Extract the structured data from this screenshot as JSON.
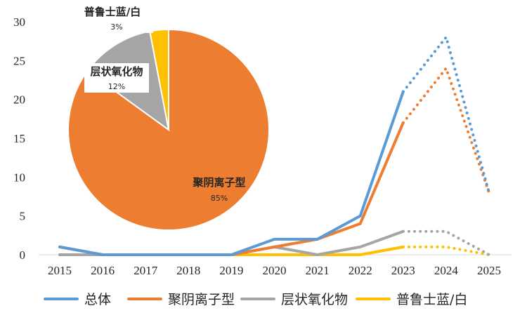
{
  "chart_data": [
    {
      "type": "line",
      "categories": [
        "2015",
        "2016",
        "2017",
        "2018",
        "2019",
        "2020",
        "2021",
        "2022",
        "2023",
        "2024",
        "2025"
      ],
      "ylim": [
        0,
        30
      ],
      "yticks": [
        0,
        5,
        10,
        15,
        20,
        25,
        30
      ],
      "solid_through": "2023",
      "forecast_from": "2023",
      "series": [
        {
          "name": "总体",
          "color": "#5B9BD5",
          "values": [
            1,
            0,
            0,
            0,
            0,
            2,
            2,
            5,
            21,
            28,
            8
          ]
        },
        {
          "name": "聚阴离子型",
          "color": "#ED7D31",
          "values": [
            1,
            0,
            0,
            0,
            0,
            1,
            2,
            4,
            17,
            24,
            8
          ]
        },
        {
          "name": "层状氧化物",
          "color": "#A5A5A5",
          "values": [
            0,
            0,
            0,
            0,
            0,
            1,
            0,
            1,
            3,
            3,
            0
          ]
        },
        {
          "name": "普鲁士蓝/白",
          "color": "#FFC000",
          "values": [
            0,
            0,
            0,
            0,
            0,
            0,
            0,
            0,
            1,
            1,
            0
          ]
        }
      ],
      "legend": [
        "总体",
        "聚阴离子型",
        "层状氧化物",
        "普鲁士蓝/白"
      ],
      "legend_position": "bottom"
    },
    {
      "type": "pie",
      "slices": [
        {
          "label": "聚阴离子型",
          "pct_label": "85%",
          "value": 85,
          "color": "#ED7D31"
        },
        {
          "label": "层状氧化物",
          "pct_label": "12%",
          "value": 12,
          "color": "#A5A5A5"
        },
        {
          "label": "普鲁士蓝/白",
          "pct_label": "3%",
          "value": 3,
          "color": "#FFC000"
        }
      ]
    }
  ]
}
